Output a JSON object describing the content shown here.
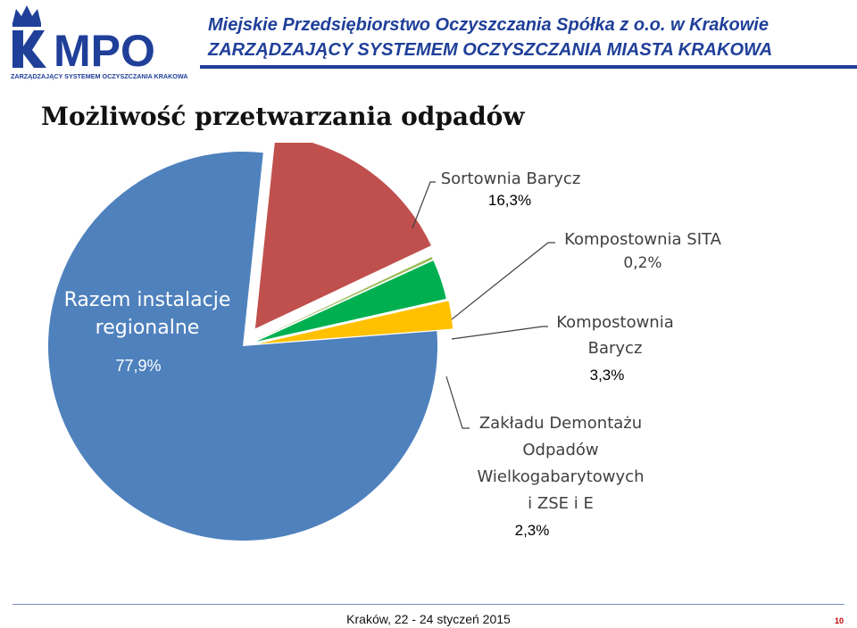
{
  "header": {
    "logo_text": "MPO",
    "logo_subtitle": "ZARZĄDZAJĄCY SYSTEMEM OCZYSZCZANIA KRAKOWA",
    "org_name": "Miejskie Przedsiębiorstwo Oczyszczania Spółka z o.o. w Krakowie",
    "org_tagline": "ZARZĄDZAJĄCY SYSTEMEM OCZYSZCZANIA MIASTA KRAKOWA",
    "brand_color": "#1f3f99"
  },
  "slide": {
    "title": "Możliwość przetwarzania odpadów"
  },
  "chart_data": {
    "type": "pie",
    "title": "",
    "slices": [
      {
        "label": "Razem instalacje regionalne",
        "value": 77.9,
        "value_label": "77,9%",
        "color": "#4f81bd"
      },
      {
        "label": "Sortownia Barycz",
        "value": 16.3,
        "value_label": "16,3%",
        "color": "#c0504d"
      },
      {
        "label": "Kompostownia SITA",
        "value": 0.2,
        "value_label": "0,2%",
        "color": "#9bbb59"
      },
      {
        "label": "Kompostownia Barycz",
        "value": 3.3,
        "value_label": "3,3%",
        "color": "#00b050"
      },
      {
        "label": "Zakładu Demontażu Odpadów Wielkogabarytowych i ZSE i E",
        "value": 2.3,
        "value_label": "2,3%",
        "color": "#ffc000"
      }
    ],
    "label_lines": {
      "regional": [
        "Razem instalacje",
        "regionalne"
      ],
      "sortownia": [
        "Sortownia Barycz"
      ],
      "sita": [
        "Kompostownia SITA"
      ],
      "kbarycz": [
        "Kompostownia",
        "Barycz"
      ],
      "zdo": [
        "Zakładu Demontażu",
        "Odpadów",
        "Wielkogabarytowych",
        "i ZSE i E"
      ]
    },
    "legend": "none"
  },
  "footer": {
    "text": "Kraków, 22 - 24 styczeń 2015",
    "page_number": "10"
  }
}
